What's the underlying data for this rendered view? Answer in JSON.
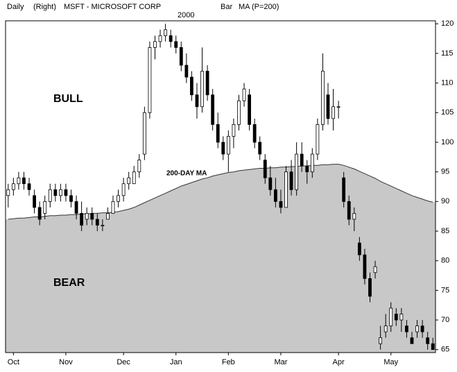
{
  "chart_data": {
    "type": "candlestick",
    "header": {
      "period": "Daily",
      "scale": "(Right)",
      "symbol": "MSFT - MICROSOFT CORP",
      "style": "Bar",
      "indicator": "MA (P=200)",
      "year": "2000"
    },
    "annotations": [
      "BULL",
      "BEAR",
      "200-DAY MA"
    ],
    "categories": [
      null,
      "Oct",
      null,
      null,
      null,
      null,
      null,
      null,
      null,
      null,
      null,
      "Nov",
      null,
      null,
      null,
      null,
      null,
      null,
      null,
      null,
      null,
      null,
      "Dec",
      null,
      null,
      null,
      null,
      null,
      null,
      null,
      null,
      null,
      "Jan",
      null,
      null,
      null,
      null,
      null,
      null,
      null,
      null,
      null,
      "Feb",
      null,
      null,
      null,
      null,
      null,
      null,
      null,
      null,
      null,
      "Mar",
      null,
      null,
      null,
      null,
      null,
      null,
      null,
      null,
      null,
      null,
      "Apr",
      null,
      null,
      null,
      null,
      null,
      null,
      null,
      null,
      null,
      "May",
      null,
      null,
      null,
      null,
      null,
      null,
      null,
      null
    ],
    "open": [
      91,
      92,
      93,
      94,
      93,
      91,
      89,
      88,
      90,
      92,
      91,
      92,
      91,
      90,
      88,
      87,
      88,
      87,
      86,
      87,
      88,
      90,
      91,
      93,
      93,
      95,
      98,
      105,
      116,
      117,
      118,
      118,
      117,
      116,
      113,
      111,
      108,
      106,
      112,
      108,
      103,
      100,
      98,
      101,
      103,
      107,
      108,
      103,
      100,
      97,
      94,
      92,
      90,
      89,
      95,
      92,
      98,
      96,
      95,
      98,
      103,
      108,
      104,
      106,
      94,
      90,
      87,
      83,
      81,
      77,
      78,
      66,
      68,
      69,
      71,
      70,
      69,
      67,
      68,
      69,
      67,
      66
    ],
    "high": [
      93,
      94,
      95,
      95,
      94,
      92,
      90,
      91,
      93,
      93,
      93,
      93,
      92,
      91,
      90,
      89,
      89,
      88,
      87,
      89,
      91,
      92,
      94,
      95,
      96,
      98,
      106,
      117,
      118,
      119,
      120,
      119,
      118,
      117,
      115,
      112,
      110,
      116,
      113,
      109,
      105,
      101,
      102,
      104,
      108,
      110,
      109,
      104,
      101,
      98,
      96,
      94,
      92,
      96,
      97,
      100,
      100,
      97,
      99,
      104,
      115,
      110,
      109,
      107,
      95,
      91,
      89,
      84,
      82,
      78,
      80,
      69,
      71,
      73,
      72,
      72,
      70,
      68,
      70,
      70,
      68,
      67
    ],
    "low": [
      89,
      91,
      92,
      92,
      91,
      88,
      86,
      87,
      89,
      90,
      90,
      90,
      89,
      87,
      85,
      86,
      86,
      85,
      85,
      87,
      88,
      89,
      90,
      92,
      93,
      94,
      97,
      104,
      114,
      116,
      117,
      116,
      115,
      112,
      110,
      107,
      104,
      105,
      107,
      102,
      99,
      97,
      95,
      99,
      102,
      106,
      102,
      99,
      97,
      93,
      91,
      89,
      88,
      89,
      91,
      91,
      95,
      93,
      94,
      97,
      102,
      103,
      102,
      104,
      89,
      86,
      85,
      80,
      76,
      73,
      77,
      65,
      67,
      68,
      69,
      68,
      67,
      66,
      67,
      67,
      65,
      65
    ],
    "close": [
      92,
      93,
      94,
      93,
      92,
      89,
      87,
      90,
      92,
      91,
      92,
      91,
      90,
      88,
      86,
      88,
      87,
      86,
      86,
      88,
      90,
      91,
      93,
      94,
      95,
      97,
      105,
      116,
      117,
      118,
      119,
      117,
      116,
      113,
      111,
      108,
      106,
      112,
      108,
      103,
      100,
      98,
      101,
      103,
      107,
      109,
      103,
      100,
      98,
      94,
      92,
      90,
      89,
      95,
      92,
      98,
      96,
      95,
      98,
      103,
      112,
      104,
      106,
      106,
      90,
      87,
      88,
      81,
      77,
      74,
      79,
      67,
      69,
      72,
      70,
      71,
      68,
      66,
      69,
      68,
      66,
      65
    ],
    "up_color": "#ffffff",
    "down_color": "#000000",
    "ma": {
      "name": "MA (P=200)",
      "color": "#c8c8c8",
      "values": [
        87.0,
        87.1,
        87.2,
        87.2,
        87.3,
        87.4,
        87.4,
        87.5,
        87.6,
        87.6,
        87.7,
        87.7,
        87.8,
        87.8,
        87.9,
        87.9,
        88.0,
        88.0,
        88.1,
        88.1,
        88.2,
        88.3,
        88.5,
        88.7,
        89.0,
        89.4,
        89.8,
        90.2,
        90.6,
        91.0,
        91.4,
        91.8,
        92.2,
        92.6,
        92.9,
        93.2,
        93.5,
        93.8,
        94.0,
        94.3,
        94.5,
        94.7,
        94.9,
        95.0,
        95.2,
        95.3,
        95.4,
        95.5,
        95.6,
        95.6,
        95.7,
        95.7,
        95.8,
        95.8,
        95.9,
        95.9,
        96.0,
        96.0,
        96.1,
        96.1,
        96.2,
        96.2,
        96.3,
        96.3,
        96.1,
        95.8,
        95.5,
        95.1,
        94.7,
        94.3,
        93.9,
        93.4,
        93.0,
        92.6,
        92.2,
        91.8,
        91.4,
        91.0,
        90.7,
        90.4,
        90.1,
        89.9
      ]
    },
    "ylim": [
      64.5,
      120.5
    ],
    "yticks": [
      65,
      70,
      75,
      80,
      85,
      90,
      95,
      100,
      105,
      110,
      115,
      120
    ]
  }
}
